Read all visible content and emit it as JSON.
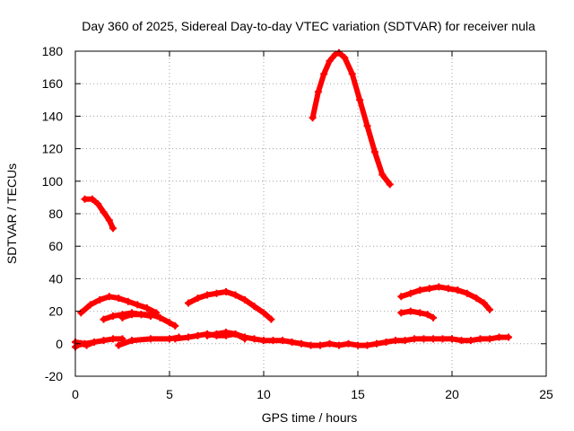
{
  "chart_data": {
    "type": "scatter",
    "title": "Day 360 of 2025, Sidereal Day-to-day VTEC variation (SDTVAR) for receiver nula",
    "xlabel": "GPS time / hours",
    "ylabel": "SDTVAR / TECUs",
    "xlim": [
      0,
      25
    ],
    "ylim": [
      -20,
      180
    ],
    "xticks": [
      "0",
      "5",
      "10",
      "15",
      "20",
      "25"
    ],
    "yticks": [
      "-20",
      "0",
      "20",
      "40",
      "60",
      "80",
      "100",
      "120",
      "140",
      "160",
      "180"
    ],
    "xtick_values": [
      0,
      5,
      10,
      15,
      20,
      25
    ],
    "ytick_values": [
      -20,
      0,
      20,
      40,
      60,
      80,
      100,
      120,
      140,
      160,
      180
    ],
    "grid": true,
    "marker_color": "#ff0000",
    "series": [
      {
        "name": "arc-1",
        "x": [
          0.5,
          0.9,
          1.2,
          1.5,
          1.8,
          2.0
        ],
        "y": [
          89,
          89,
          86,
          81,
          76,
          71
        ]
      },
      {
        "name": "arc-2",
        "x": [
          0.3,
          0.8,
          1.3,
          1.8,
          2.3,
          2.8,
          3.3,
          3.8,
          4.3
        ],
        "y": [
          19,
          24,
          27,
          29,
          28,
          26,
          24,
          22,
          19
        ]
      },
      {
        "name": "arc-3",
        "x": [
          1.5,
          2.0,
          2.5,
          3.0,
          3.5,
          4.0,
          4.5,
          5.0,
          5.3
        ],
        "y": [
          15,
          17,
          18,
          19,
          18,
          18,
          16,
          13,
          11
        ]
      },
      {
        "name": "arc-4",
        "x": [
          2.5,
          3.0,
          3.5,
          4.0
        ],
        "y": [
          16,
          18,
          18,
          17
        ]
      },
      {
        "name": "arc-5",
        "x": [
          6.0,
          6.5,
          7.0,
          7.5,
          8.0,
          8.5,
          9.0,
          9.5,
          10.0,
          10.4
        ],
        "y": [
          25,
          28,
          30,
          31,
          32,
          30,
          27,
          23,
          19,
          15
        ]
      },
      {
        "name": "arc-6",
        "x": [
          12.6,
          12.9,
          13.2,
          13.5,
          13.8,
          14.0,
          14.3,
          14.7,
          15.1,
          15.5,
          15.9,
          16.3,
          16.7
        ],
        "y": [
          139,
          155,
          166,
          174,
          178,
          179,
          176,
          166,
          150,
          134,
          118,
          104,
          98
        ]
      },
      {
        "name": "arc-7",
        "x": [
          17.3,
          17.8,
          18.3,
          18.8,
          19.3,
          19.8,
          20.3,
          20.8,
          21.3,
          21.7,
          22.0
        ],
        "y": [
          29,
          31,
          33,
          34,
          35,
          34,
          33,
          31,
          28,
          25,
          21
        ]
      },
      {
        "name": "arc-8",
        "x": [
          17.3,
          17.8,
          18.3,
          18.7,
          19.0
        ],
        "y": [
          19,
          20,
          19,
          18,
          16
        ]
      },
      {
        "name": "baseline-1",
        "x": [
          0.0,
          0.5,
          1.0,
          1.5,
          2.0,
          2.5
        ],
        "y": [
          1,
          0,
          1,
          2,
          3,
          3
        ]
      },
      {
        "name": "baseline-2",
        "x": [
          2.3,
          3.0,
          4.0,
          5.0,
          5.5
        ],
        "y": [
          -1,
          2,
          3,
          3,
          4
        ]
      },
      {
        "name": "baseline-3",
        "x": [
          5.3,
          6.0,
          6.5,
          7.0,
          7.5,
          8.0,
          8.5,
          9.0,
          9.5,
          10.0,
          10.5,
          11.0,
          11.5,
          12.0,
          12.5,
          13.0,
          13.5,
          14.0,
          14.5,
          15.0,
          15.5,
          16.0,
          16.5,
          17.0,
          17.5,
          18.0,
          18.5,
          19.0,
          19.5,
          20.0,
          20.5,
          21.0,
          21.5,
          22.0,
          22.5,
          23.0
        ],
        "y": [
          3,
          4,
          5,
          6,
          5,
          5,
          6,
          4,
          3,
          2,
          2,
          2,
          1,
          0,
          -1,
          -1,
          0,
          -1,
          0,
          -1,
          -1,
          0,
          1,
          2,
          2,
          3,
          3,
          3,
          3,
          3,
          2,
          2,
          3,
          3,
          4,
          4
        ]
      },
      {
        "name": "baseline-4",
        "x": [
          7.0,
          7.5,
          8.0,
          8.5,
          9.0
        ],
        "y": [
          5,
          6,
          7,
          6,
          3
        ]
      },
      {
        "name": "baseline-5",
        "x": [
          0.0,
          0.3,
          0.6,
          1.0
        ],
        "y": [
          -2,
          0,
          -1,
          1
        ]
      }
    ]
  }
}
